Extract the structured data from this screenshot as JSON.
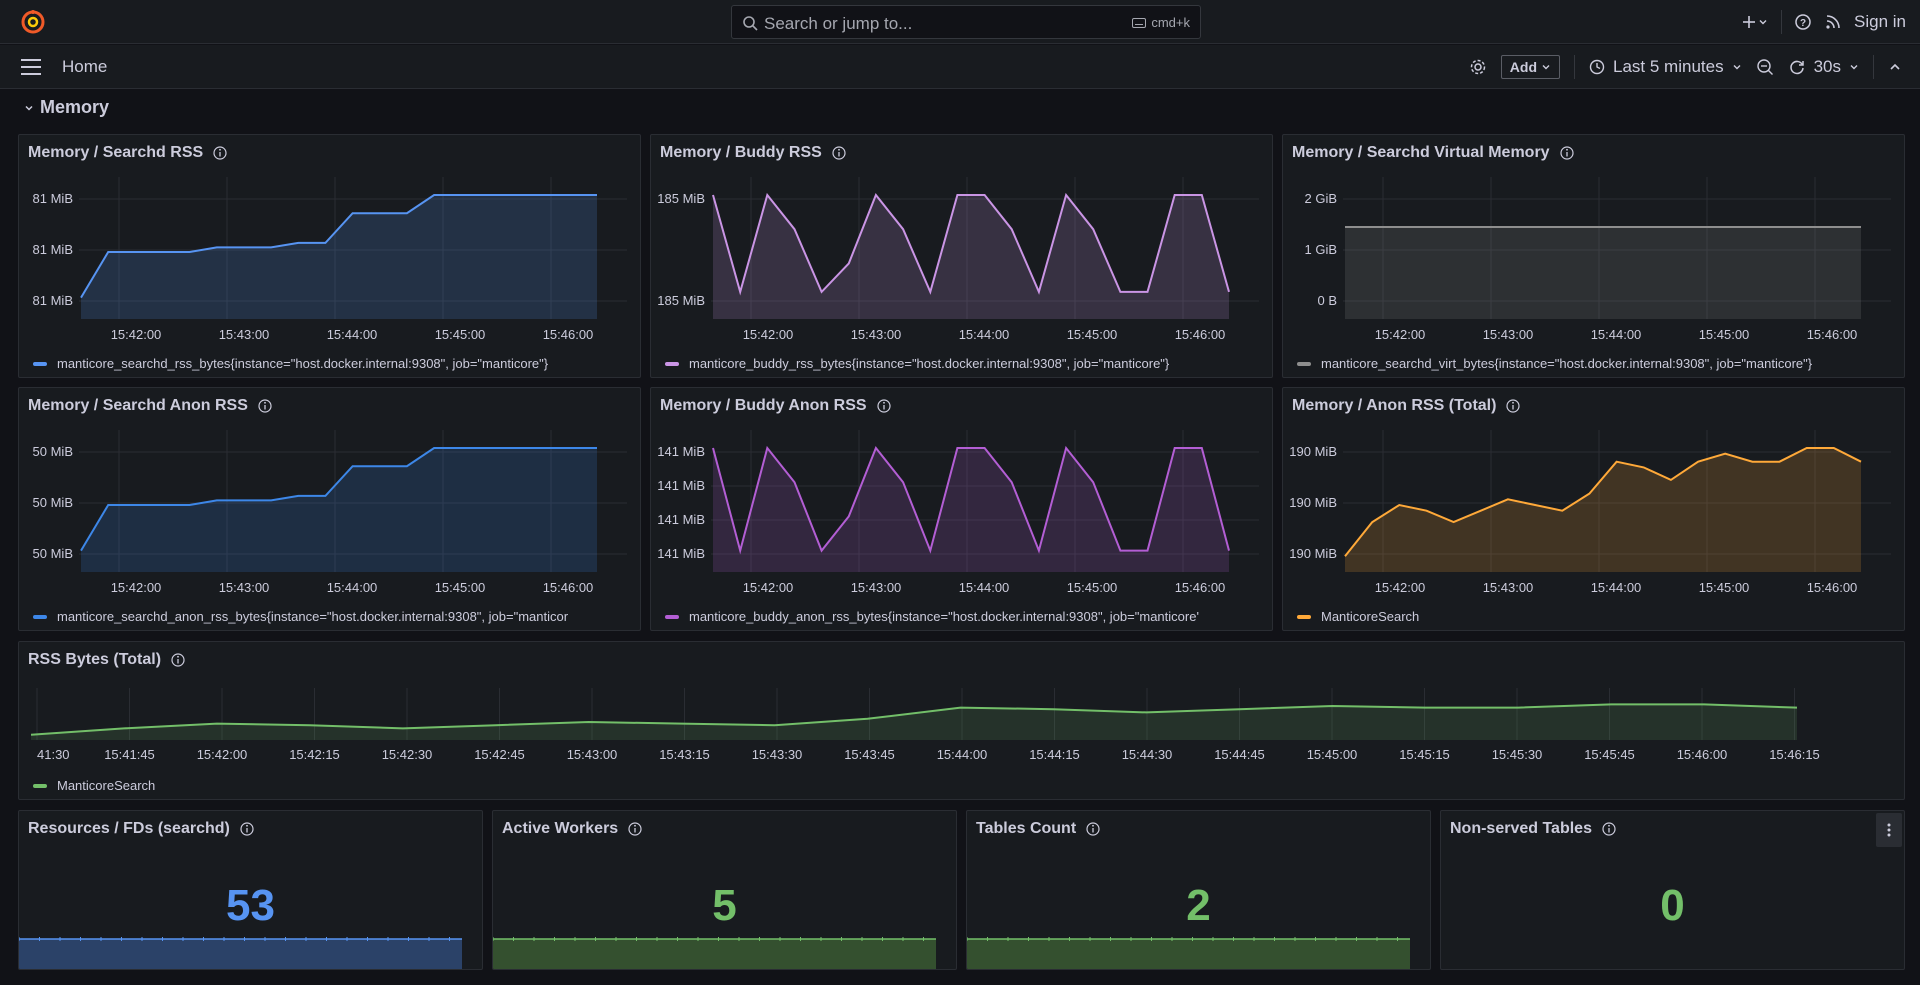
{
  "search": {
    "placeholder": "Search or jump to...",
    "shortcut": "cmd+k"
  },
  "topbar": {
    "signin": "Sign in"
  },
  "nav": {
    "breadcrumb": "Home",
    "add_label": "Add",
    "time_range": "Last 5 minutes",
    "refresh_interval": "30s"
  },
  "row": {
    "title": "Memory"
  },
  "colors": {
    "blue": "#5794f2",
    "purple": "#ca95e5",
    "gray": "#8e8e8e",
    "orange": "#ffa939",
    "green": "#73bf69"
  },
  "panels": [
    {
      "title": "Memory / Searchd RSS",
      "color": "#5794f2",
      "yticks": [
        "81 MiB",
        "81 MiB",
        "81 MiB"
      ],
      "xticks": [
        "15:42:00",
        "15:43:00",
        "15:44:00",
        "15:45:00",
        "15:46:00"
      ],
      "legend": "manticore_searchd_rss_bytes{instance=\"host.docker.internal:9308\", job=\"manticore\"}",
      "series": [
        0.1,
        0.5,
        0.5,
        0.5,
        0.5,
        0.54,
        0.54,
        0.54,
        0.58,
        0.58,
        0.84,
        0.84,
        0.84,
        1.0,
        1.0,
        1.0,
        1.0,
        1.0,
        1.0,
        1.0
      ]
    },
    {
      "title": "Memory / Buddy RSS",
      "color": "#ca95e5",
      "yticks": [
        "185 MiB",
        "185 MiB"
      ],
      "xticks": [
        "15:42:00",
        "15:43:00",
        "15:44:00",
        "15:45:00",
        "15:46:00"
      ],
      "legend": "manticore_buddy_rss_bytes{instance=\"host.docker.internal:9308\", job=\"manticore\"}",
      "series": [
        1,
        0.15,
        1,
        0.7,
        0.15,
        0.4,
        1,
        0.7,
        0.15,
        1,
        1,
        0.7,
        0.15,
        1,
        0.7,
        0.15,
        0.15,
        1,
        1,
        0.15
      ]
    },
    {
      "title": "Memory / Searchd Virtual Memory",
      "color": "#8e8e8e",
      "yticks": [
        "2 GiB",
        "1 GiB",
        "0 B"
      ],
      "xticks": [
        "15:42:00",
        "15:43:00",
        "15:44:00",
        "15:45:00",
        "15:46:00"
      ],
      "legend": "manticore_searchd_virt_bytes{instance=\"host.docker.internal:9308\", job=\"manticore\"}",
      "series": [
        1.6,
        1.6
      ]
    },
    {
      "title": "Memory / Searchd Anon RSS",
      "color": "#3d87e8",
      "yticks": [
        "50 MiB",
        "50 MiB",
        "50 MiB"
      ],
      "xticks": [
        "15:42:00",
        "15:43:00",
        "15:44:00",
        "15:45:00",
        "15:46:00"
      ],
      "legend": "manticore_searchd_anon_rss_bytes{instance=\"host.docker.internal:9308\", job=\"manticor",
      "series": [
        0.1,
        0.5,
        0.5,
        0.5,
        0.5,
        0.54,
        0.54,
        0.54,
        0.58,
        0.58,
        0.84,
        0.84,
        0.84,
        1.0,
        1.0,
        1.0,
        1.0,
        1.0,
        1.0,
        1.0
      ]
    },
    {
      "title": "Memory / Buddy Anon RSS",
      "color": "#b35ed4",
      "yticks": [
        "141 MiB",
        "141 MiB",
        "141 MiB",
        "141 MiB"
      ],
      "xticks": [
        "15:42:00",
        "15:43:00",
        "15:44:00",
        "15:45:00",
        "15:46:00"
      ],
      "legend": "manticore_buddy_anon_rss_bytes{instance=\"host.docker.internal:9308\", job=\"manticore'",
      "series": [
        1,
        0.1,
        1,
        0.7,
        0.1,
        0.4,
        1,
        0.7,
        0.1,
        1,
        1,
        0.7,
        0.1,
        1,
        0.7,
        0.1,
        0.1,
        1,
        1,
        0.1
      ]
    },
    {
      "title": "Memory / Anon RSS (Total)",
      "color": "#ffa939",
      "yticks": [
        "190 MiB",
        "190 MiB",
        "190 MiB"
      ],
      "xticks": [
        "15:42:00",
        "15:43:00",
        "15:44:00",
        "15:45:00",
        "15:46:00"
      ],
      "legend": "ManticoreSearch",
      "series": [
        0.05,
        0.35,
        0.5,
        0.45,
        0.35,
        0.45,
        0.55,
        0.5,
        0.45,
        0.6,
        0.88,
        0.83,
        0.72,
        0.88,
        0.95,
        0.88,
        0.88,
        1.0,
        1.0,
        0.88
      ]
    }
  ],
  "wide_panel": {
    "title": "RSS Bytes (Total)",
    "color": "#73bf69",
    "xticks": [
      "41:30",
      "15:41:45",
      "15:42:00",
      "15:42:15",
      "15:42:30",
      "15:42:45",
      "15:43:00",
      "15:43:15",
      "15:43:30",
      "15:43:45",
      "15:44:00",
      "15:44:15",
      "15:44:30",
      "15:44:45",
      "15:45:00",
      "15:45:15",
      "15:45:30",
      "15:45:45",
      "15:46:00",
      "15:46:15"
    ],
    "legend": "ManticoreSearch",
    "series": [
      0.1,
      0.3,
      0.45,
      0.4,
      0.3,
      0.4,
      0.5,
      0.45,
      0.4,
      0.6,
      0.95,
      0.9,
      0.8,
      0.9,
      1.0,
      0.95,
      0.95,
      1.05,
      1.05,
      0.95
    ]
  },
  "stats": [
    {
      "title": "Resources / FDs (searchd)",
      "value": "53",
      "color": "#5794f2",
      "fill": "#2b4268"
    },
    {
      "title": "Active Workers",
      "value": "5",
      "color": "#73bf69",
      "fill": "#34502f"
    },
    {
      "title": "Tables Count",
      "value": "2",
      "color": "#73bf69",
      "fill": "#34502f"
    },
    {
      "title": "Non-served Tables",
      "value": "0",
      "color": "#73bf69",
      "fill": "none"
    }
  ]
}
